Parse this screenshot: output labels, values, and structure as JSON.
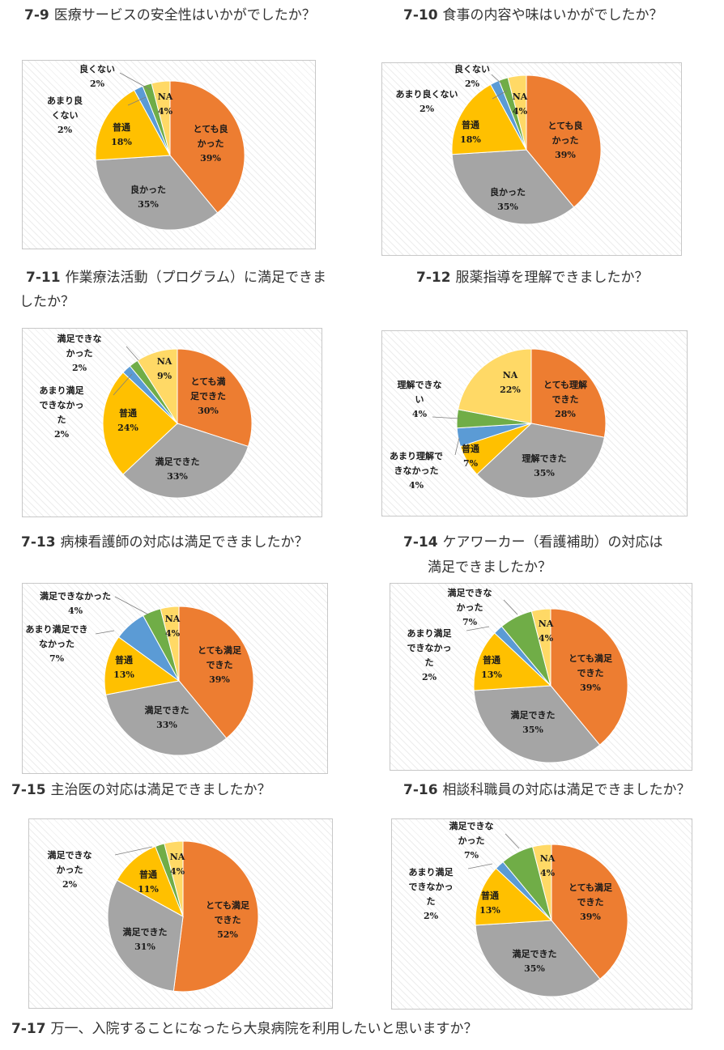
{
  "colors": {
    "very_good": "#ED7D31",
    "good": "#A5A5A5",
    "normal": "#FFC000",
    "somewhat_bad": "#5B9BD5",
    "bad": "#70AD47",
    "na": "#FFD966"
  },
  "chart_data": [
    {
      "id": "q7-9",
      "type": "pie",
      "number": "7-9",
      "title": "医療サービスの安全性はいかがでしたか？",
      "slices": [
        {
          "label": "とても良かった",
          "value": 39,
          "pct": "39%",
          "color": "#ED7D31"
        },
        {
          "label": "良かった",
          "value": 35,
          "pct": "35%",
          "color": "#A5A5A5"
        },
        {
          "label": "普通",
          "value": 18,
          "pct": "18%",
          "color": "#FFC000"
        },
        {
          "label": "あまり良くない",
          "value": 2,
          "pct": "2%",
          "color": "#5B9BD5"
        },
        {
          "label": "良くない",
          "value": 2,
          "pct": "2%",
          "color": "#70AD47"
        },
        {
          "label": "NA",
          "value": 4,
          "pct": "4%",
          "color": "#FFD966"
        }
      ]
    },
    {
      "id": "q7-10",
      "type": "pie",
      "number": "7-10",
      "title": "食事の内容や味はいかがでしたか？",
      "slices": [
        {
          "label": "とても良かった",
          "value": 39,
          "pct": "39%",
          "color": "#ED7D31"
        },
        {
          "label": "良かった",
          "value": 35,
          "pct": "35%",
          "color": "#A5A5A5"
        },
        {
          "label": "普通",
          "value": 18,
          "pct": "18%",
          "color": "#FFC000"
        },
        {
          "label": "あまり良くない",
          "value": 2,
          "pct": "2%",
          "color": "#5B9BD5"
        },
        {
          "label": "良くない",
          "value": 2,
          "pct": "2%",
          "color": "#70AD47"
        },
        {
          "label": "NA",
          "value": 4,
          "pct": "4%",
          "color": "#FFD966"
        }
      ]
    },
    {
      "id": "q7-11",
      "type": "pie",
      "number": "7-11",
      "title": "作業療法活動（プログラム）に満足できま",
      "title_line2": "したか？",
      "slices": [
        {
          "label": "とても満足できた",
          "value": 30,
          "pct": "30%",
          "color": "#ED7D31"
        },
        {
          "label": "満足できた",
          "value": 33,
          "pct": "33%",
          "color": "#A5A5A5"
        },
        {
          "label": "普通",
          "value": 24,
          "pct": "24%",
          "color": "#FFC000"
        },
        {
          "label": "あまり満足できなかった",
          "value": 2,
          "pct": "2%",
          "color": "#5B9BD5"
        },
        {
          "label": "満足できなかった",
          "value": 2,
          "pct": "2%",
          "color": "#70AD47"
        },
        {
          "label": "NA",
          "value": 9,
          "pct": "9%",
          "color": "#FFD966"
        }
      ]
    },
    {
      "id": "q7-12",
      "type": "pie",
      "number": "7-12",
      "title": "服薬指導を理解できましたか？",
      "slices": [
        {
          "label": "とても理解できた",
          "value": 28,
          "pct": "28%",
          "color": "#ED7D31"
        },
        {
          "label": "理解できた",
          "value": 35,
          "pct": "35%",
          "color": "#A5A5A5"
        },
        {
          "label": "普通",
          "value": 7,
          "pct": "7%",
          "color": "#FFC000"
        },
        {
          "label": "あまり理解できなかった",
          "value": 4,
          "pct": "4%",
          "color": "#5B9BD5"
        },
        {
          "label": "理解できない",
          "value": 4,
          "pct": "4%",
          "color": "#70AD47"
        },
        {
          "label": "NA",
          "value": 22,
          "pct": "22%",
          "color": "#FFD966"
        }
      ]
    },
    {
      "id": "q7-13",
      "type": "pie",
      "number": "7-13",
      "title": "病棟看護師の対応は満足できましたか？",
      "slices": [
        {
          "label": "とても満足できた",
          "value": 39,
          "pct": "39%",
          "color": "#ED7D31"
        },
        {
          "label": "満足できた",
          "value": 33,
          "pct": "33%",
          "color": "#A5A5A5"
        },
        {
          "label": "普通",
          "value": 13,
          "pct": "13%",
          "color": "#FFC000"
        },
        {
          "label": "あまり満足できなかった",
          "value": 7,
          "pct": "7%",
          "color": "#5B9BD5"
        },
        {
          "label": "満足できなかった",
          "value": 4,
          "pct": "4%",
          "color": "#70AD47"
        },
        {
          "label": "NA",
          "value": 4,
          "pct": "4%",
          "color": "#FFD966"
        }
      ]
    },
    {
      "id": "q7-14",
      "type": "pie",
      "number": "7-14",
      "title": "ケアワーカー（看護補助）の対応は",
      "title_line2": "満足できましたか？",
      "slices": [
        {
          "label": "とても満足できた",
          "value": 39,
          "pct": "39%",
          "color": "#ED7D31"
        },
        {
          "label": "満足できた",
          "value": 35,
          "pct": "35%",
          "color": "#A5A5A5"
        },
        {
          "label": "普通",
          "value": 13,
          "pct": "13%",
          "color": "#FFC000"
        },
        {
          "label": "あまり満足できなかった",
          "value": 2,
          "pct": "2%",
          "color": "#5B9BD5"
        },
        {
          "label": "満足できなかった",
          "value": 7,
          "pct": "7%",
          "color": "#70AD47"
        },
        {
          "label": "NA",
          "value": 4,
          "pct": "4%",
          "color": "#FFD966"
        }
      ]
    },
    {
      "id": "q7-15",
      "type": "pie",
      "number": "7-15",
      "title": "主治医の対応は満足できましたか？",
      "slices": [
        {
          "label": "とても満足できた",
          "value": 52,
          "pct": "52%",
          "color": "#ED7D31"
        },
        {
          "label": "満足できた",
          "value": 31,
          "pct": "31%",
          "color": "#A5A5A5"
        },
        {
          "label": "普通",
          "value": 11,
          "pct": "11%",
          "color": "#FFC000"
        },
        {
          "label": "満足できなかった",
          "value": 2,
          "pct": "2%",
          "color": "#70AD47"
        },
        {
          "label": "NA",
          "value": 4,
          "pct": "4%",
          "color": "#FFD966"
        }
      ]
    },
    {
      "id": "q7-16",
      "type": "pie",
      "number": "7-16",
      "title": "相談科職員の対応は満足できましたか？",
      "slices": [
        {
          "label": "とても満足できた",
          "value": 39,
          "pct": "39%",
          "color": "#ED7D31"
        },
        {
          "label": "満足できた",
          "value": 35,
          "pct": "35%",
          "color": "#A5A5A5"
        },
        {
          "label": "普通",
          "value": 13,
          "pct": "13%",
          "color": "#FFC000"
        },
        {
          "label": "あまり満足できなかった",
          "value": 2,
          "pct": "2%",
          "color": "#5B9BD5"
        },
        {
          "label": "満足できなかった",
          "value": 7,
          "pct": "7%",
          "color": "#70AD47"
        },
        {
          "label": "NA",
          "value": 4,
          "pct": "4%",
          "color": "#FFD966"
        }
      ]
    },
    {
      "id": "q7-17",
      "type": "text",
      "number": "7-17",
      "title": "万一、入院することになったら大泉病院を利用したいと思いますか？"
    }
  ]
}
